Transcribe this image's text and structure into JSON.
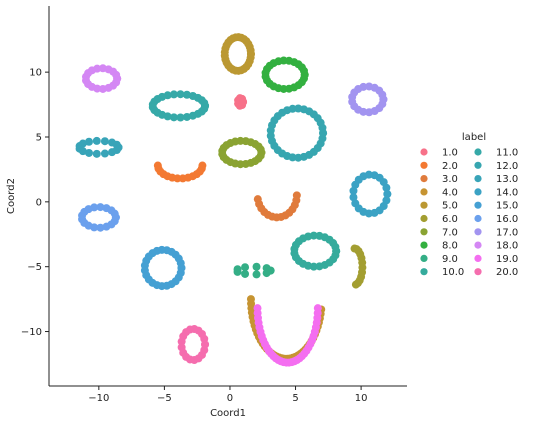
{
  "chart_data": {
    "type": "scatter",
    "title": "",
    "xlabel": "Coord1",
    "ylabel": "Coord2",
    "xlim": [
      -13.8,
      13.5
    ],
    "ylim": [
      -14.2,
      15.1
    ],
    "xticks": [
      -10,
      -5,
      0,
      5,
      10
    ],
    "yticks": [
      -10,
      -5,
      0,
      5,
      10
    ],
    "grid": false,
    "legend": {
      "title": "label",
      "placement": "right",
      "columns": 2
    },
    "series": [
      {
        "name": "1.0",
        "color": "#f77189",
        "shape": "arc",
        "cx": 0.8,
        "cy": 7.7,
        "rx": 0.2,
        "ry": 0.3,
        "a0": 0,
        "a1": 360,
        "n": 8
      },
      {
        "name": "2.0",
        "color": "#f37932",
        "shape": "arc",
        "cx": -3.8,
        "cy": 2.8,
        "rx": 1.7,
        "ry": 1.0,
        "a0": 180,
        "a1": 360,
        "n": 14
      },
      {
        "name": "3.0",
        "color": "#e07b3c",
        "shape": "arc",
        "cx": 3.6,
        "cy": 0.5,
        "rx": 1.5,
        "ry": 1.7,
        "a0": 190,
        "a1": 360,
        "n": 14
      },
      {
        "name": "4.0",
        "color": "#c69432",
        "shape": "arc",
        "cx": 4.3,
        "cy": -7.5,
        "rx": 2.7,
        "ry": 4.6,
        "a0": 180,
        "a1": 350,
        "n": 40
      },
      {
        "name": "5.0",
        "color": "#bb9832",
        "shape": "arc",
        "cx": 0.6,
        "cy": 11.4,
        "rx": 1.0,
        "ry": 1.3,
        "a0": 0,
        "a1": 360,
        "n": 30
      },
      {
        "name": "6.0",
        "color": "#a39e31",
        "shape": "arc",
        "cx": 9.5,
        "cy": -5.0,
        "rx": 0.6,
        "ry": 1.4,
        "a0": 280,
        "a1": 450,
        "n": 12
      },
      {
        "name": "7.0",
        "color": "#8aa332",
        "shape": "arc",
        "cx": 0.9,
        "cy": 3.8,
        "rx": 1.5,
        "ry": 0.9,
        "a0": 0,
        "a1": 360,
        "n": 24
      },
      {
        "name": "8.0",
        "color": "#33b040",
        "shape": "arc",
        "cx": 4.2,
        "cy": 9.8,
        "rx": 1.5,
        "ry": 1.1,
        "a0": 0,
        "a1": 360,
        "n": 24
      },
      {
        "name": "9.0",
        "color": "#34ae86",
        "shape": "arc",
        "cx": 1.8,
        "cy": -5.3,
        "rx": 1.3,
        "ry": 0.3,
        "a0": 0,
        "a1": 360,
        "n": 10
      },
      {
        "name": "10.0",
        "color": "#35ab9c",
        "shape": "arc",
        "cx": 6.5,
        "cy": -3.8,
        "rx": 1.6,
        "ry": 1.2,
        "a0": 0,
        "a1": 360,
        "n": 24
      },
      {
        "name": "11.0",
        "color": "#36a9a8",
        "shape": "arc",
        "cx": -3.9,
        "cy": 7.4,
        "rx": 2.0,
        "ry": 0.9,
        "a0": 0,
        "a1": 360,
        "n": 26
      },
      {
        "name": "12.0",
        "color": "#37a6b0",
        "shape": "arc",
        "cx": 5.1,
        "cy": 5.3,
        "rx": 2.0,
        "ry": 1.9,
        "a0": 0,
        "a1": 360,
        "n": 30
      },
      {
        "name": "13.0",
        "color": "#38a4b8",
        "shape": "arc",
        "cx": -10.0,
        "cy": 4.2,
        "rx": 1.5,
        "ry": 0.5,
        "a0": 0,
        "a1": 360,
        "n": 16
      },
      {
        "name": "14.0",
        "color": "#3ba2c4",
        "shape": "arc",
        "cx": 10.7,
        "cy": 0.6,
        "rx": 1.3,
        "ry": 1.5,
        "a0": 0,
        "a1": 360,
        "n": 20
      },
      {
        "name": "15.0",
        "color": "#45a0d3",
        "shape": "arc",
        "cx": -5.1,
        "cy": -5.1,
        "rx": 1.4,
        "ry": 1.4,
        "a0": 0,
        "a1": 360,
        "n": 24
      },
      {
        "name": "16.0",
        "color": "#6ba0ed",
        "shape": "arc",
        "cx": -10.0,
        "cy": -1.2,
        "rx": 1.3,
        "ry": 0.8,
        "a0": 0,
        "a1": 360,
        "n": 18
      },
      {
        "name": "17.0",
        "color": "#a294f0",
        "shape": "arc",
        "cx": 10.5,
        "cy": 7.9,
        "rx": 1.2,
        "ry": 1.0,
        "a0": 0,
        "a1": 360,
        "n": 18
      },
      {
        "name": "18.0",
        "color": "#d487f4",
        "shape": "arc",
        "cx": -9.8,
        "cy": 9.5,
        "rx": 1.2,
        "ry": 0.8,
        "a0": 0,
        "a1": 360,
        "n": 18
      },
      {
        "name": "19.0",
        "color": "#f46ef0",
        "shape": "arc",
        "cx": 4.4,
        "cy": -8.2,
        "rx": 2.3,
        "ry": 4.2,
        "a0": 180,
        "a1": 360,
        "n": 36
      },
      {
        "name": "20.0",
        "color": "#f56dae",
        "shape": "arc",
        "cx": -2.8,
        "cy": -11.0,
        "rx": 0.9,
        "ry": 1.2,
        "a0": 0,
        "a1": 360,
        "n": 18
      }
    ]
  }
}
